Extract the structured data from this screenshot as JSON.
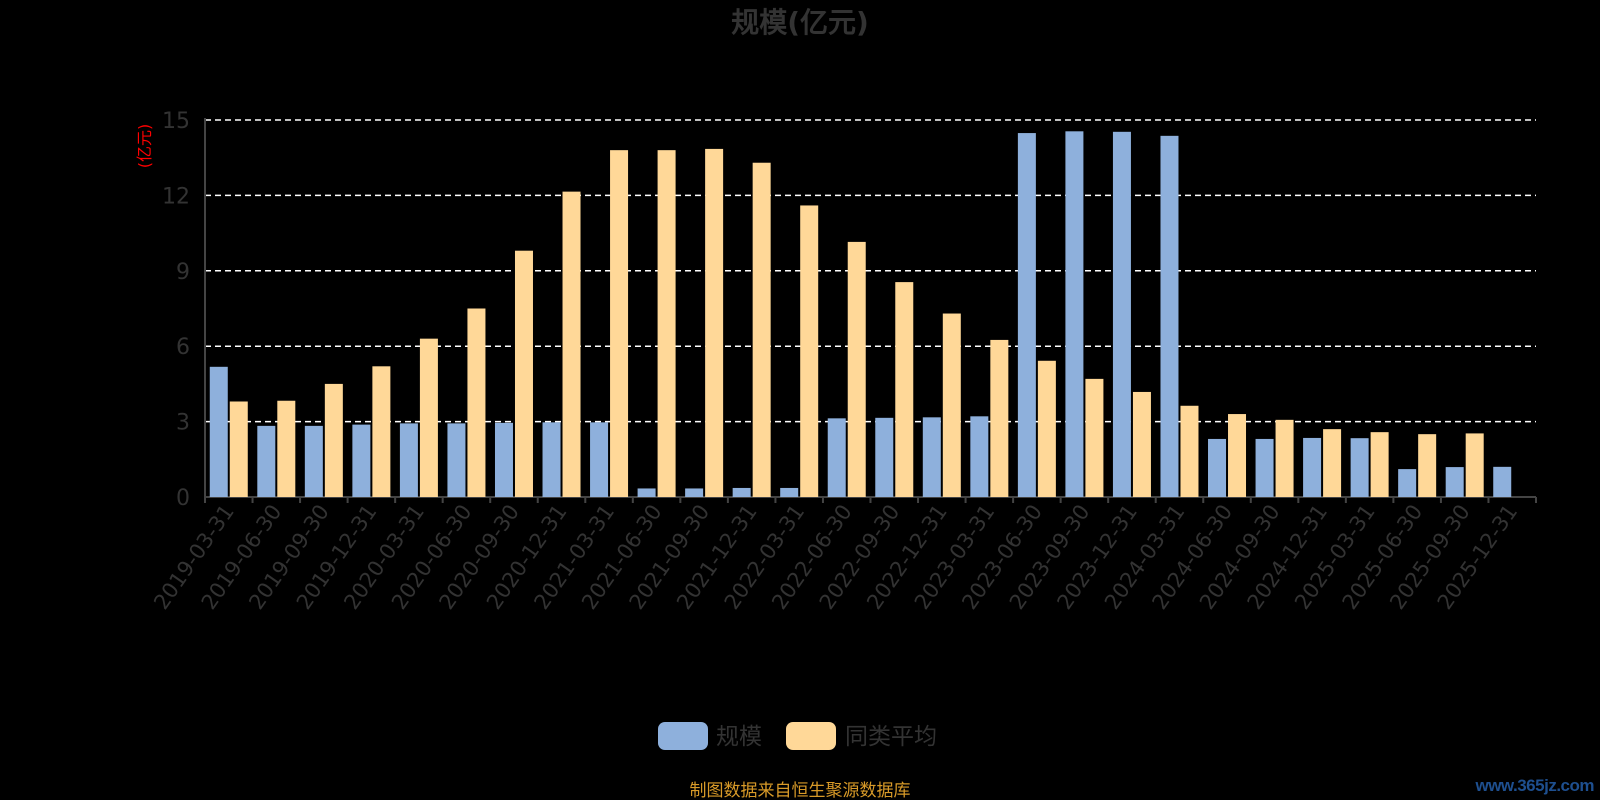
{
  "chart_data": {
    "type": "bar",
    "title": "规模(亿元)",
    "ylabel": "(亿元)",
    "ylim": [
      0,
      15
    ],
    "yticks": [
      0,
      3,
      6,
      9,
      12,
      15
    ],
    "grid": "dashed horizontal",
    "legend_position": "bottom",
    "categories": [
      "2019-03-31",
      "2019-06-30",
      "2019-09-30",
      "2019-12-31",
      "2020-03-31",
      "2020-06-30",
      "2020-09-30",
      "2020-12-31",
      "2021-03-31",
      "2021-06-30",
      "2021-09-30",
      "2021-12-31",
      "2022-03-31",
      "2022-06-30",
      "2022-09-30",
      "2022-12-31",
      "2023-03-31",
      "2023-06-30",
      "2023-09-30",
      "2023-12-31",
      "2024-03-31",
      "2024-06-30",
      "2024-09-30",
      "2024-12-31",
      "2025-03-31",
      "2025-06-30",
      "2025-09-30",
      "2025-12-31"
    ],
    "series": [
      {
        "name": "规模",
        "color": "#8eb0dc",
        "values": [
          5.18,
          2.83,
          2.83,
          2.88,
          2.93,
          2.93,
          2.95,
          2.97,
          2.97,
          0.34,
          0.34,
          0.36,
          0.36,
          3.13,
          3.15,
          3.17,
          3.21,
          14.48,
          14.55,
          14.53,
          14.37,
          2.31,
          2.31,
          2.35,
          2.34,
          1.11,
          1.19,
          1.2
        ]
      },
      {
        "name": "同类平均",
        "color": "#ffd898",
        "values": [
          3.8,
          3.83,
          4.5,
          5.2,
          6.3,
          7.5,
          9.8,
          12.15,
          13.8,
          13.8,
          13.85,
          13.3,
          11.6,
          10.15,
          8.55,
          7.3,
          6.25,
          5.42,
          4.7,
          4.18,
          3.63,
          3.3,
          3.07,
          2.7,
          2.58,
          2.5,
          2.53,
          null
        ]
      }
    ]
  },
  "footer": {
    "source_note": "制图数据来自恒生聚源数据库",
    "watermark": "www.365jz.com"
  },
  "colors": {
    "background": "#000000",
    "title": "#333333",
    "axis_text": "#333333",
    "ylabel": "#ff0000",
    "grid": "#ffffff",
    "source_note": "#d89a28",
    "watermark": "#1e4f8f"
  }
}
